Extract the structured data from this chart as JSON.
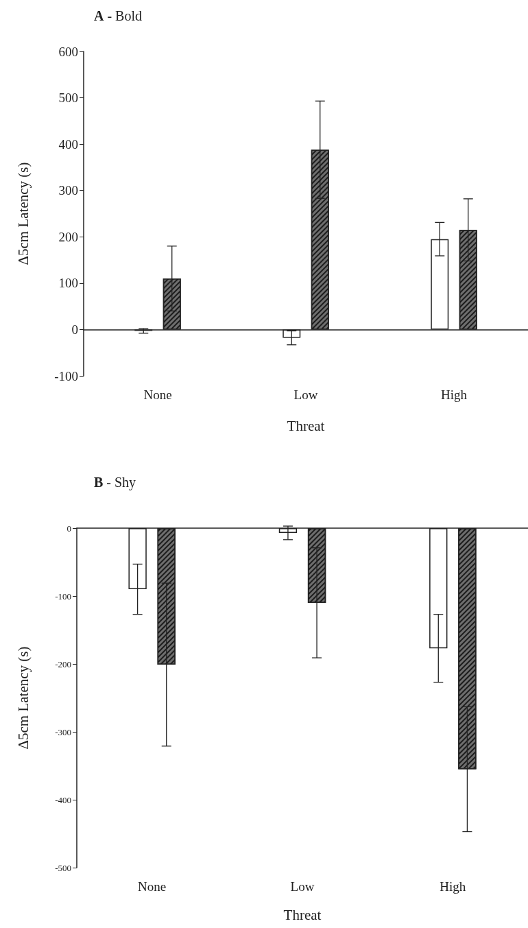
{
  "chart_data": [
    {
      "type": "bar",
      "title": "A - Bold",
      "xlabel": "Threat",
      "ylabel": "Δ5cm Latency (s)",
      "categories": [
        "None",
        "Low",
        "High"
      ],
      "series": [
        {
          "color": "#ffffff",
          "values": [
            -3,
            -18,
            195
          ],
          "errors": [
            5,
            15,
            36
          ]
        },
        {
          "color": "#6e6e6e",
          "values": [
            110,
            388,
            215
          ],
          "errors": [
            70,
            105,
            67
          ]
        }
      ],
      "ylim": [
        -100,
        600
      ],
      "yticks": [
        -100,
        0,
        100,
        200,
        300,
        400,
        500,
        600
      ]
    },
    {
      "type": "bar",
      "title": "B - Shy",
      "xlabel": "Threat",
      "ylabel": "Δ5cm Latency (s)",
      "categories": [
        "None",
        "Low",
        "High"
      ],
      "series": [
        {
          "color": "#ffffff",
          "values": [
            -90,
            -7,
            -177
          ],
          "errors": [
            37,
            10,
            50
          ]
        },
        {
          "color": "#6e6e6e",
          "values": [
            -201,
            -110,
            -355
          ],
          "errors": [
            120,
            81,
            92
          ]
        }
      ],
      "ylim": [
        -500,
        0
      ],
      "yticks": [
        -500,
        -400,
        -300,
        -200,
        -100,
        0
      ]
    }
  ]
}
